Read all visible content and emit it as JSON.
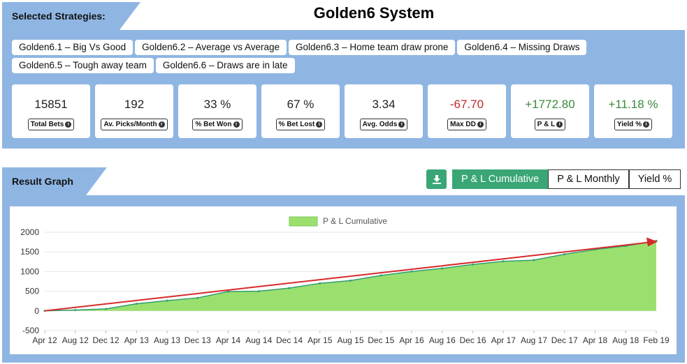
{
  "header": {
    "strategies_label": "Selected Strategies:",
    "title": "Golden6 System"
  },
  "strategies": [
    "Golden6.1 – Big Vs Good",
    "Golden6.2 – Average vs Average",
    "Golden6.3 – Home team draw prone",
    "Golden6.4 – Missing Draws",
    "Golden6.5 – Tough away team",
    "Golden6.6 – Draws are in late"
  ],
  "stats": [
    {
      "value": "15851",
      "label": "Total Bets",
      "tone": "neutral"
    },
    {
      "value": "192",
      "label": "Av. Picks/Month",
      "tone": "neutral"
    },
    {
      "value": "33 %",
      "label": "% Bet Won",
      "tone": "neutral"
    },
    {
      "value": "67 %",
      "label": "% Bet Lost",
      "tone": "neutral"
    },
    {
      "value": "3.34",
      "label": "Avg. Odds",
      "tone": "neutral"
    },
    {
      "value": "-67.70",
      "label": "Max DD",
      "tone": "neg"
    },
    {
      "value": "+1772.80",
      "label": "P & L",
      "tone": "pos"
    },
    {
      "value": "+11.18 %",
      "label": "Yield %",
      "tone": "pos"
    }
  ],
  "result": {
    "label": "Result Graph",
    "buttons": [
      "P & L Cumulative",
      "P & L Monthly",
      "Yield %"
    ],
    "active_button": 0
  },
  "colors": {
    "panel": "#8fb6e3",
    "accent_green": "#3aa676",
    "area_fill": "#9be06f",
    "area_line": "#2f9d6f",
    "trend_arrow": "#d62a2a"
  },
  "chart_data": {
    "type": "area",
    "legend": "P & L Cumulative",
    "legend_position": "top-center",
    "grid": true,
    "ylim": [
      -500,
      2000
    ],
    "yticks": [
      -500,
      0,
      500,
      1000,
      1500,
      2000
    ],
    "x_tick_labels": [
      "Apr 12",
      "Aug 12",
      "Dec 12",
      "Apr 13",
      "Aug 13",
      "Dec 13",
      "Apr 14",
      "Aug 14",
      "Dec 14",
      "Apr 15",
      "Aug 15",
      "Dec 15",
      "Apr 16",
      "Aug 16",
      "Dec 16",
      "Apr 17",
      "Aug 17",
      "Dec 17",
      "Apr 18",
      "Aug 18",
      "Feb 19"
    ],
    "x": [
      "Apr 12",
      "Aug 12",
      "Dec 12",
      "Apr 13",
      "Aug 13",
      "Dec 13",
      "Apr 14",
      "Aug 14",
      "Dec 14",
      "Apr 15",
      "Aug 15",
      "Dec 15",
      "Apr 16",
      "Aug 16",
      "Dec 16",
      "Apr 17",
      "Aug 17",
      "Dec 17",
      "Apr 18",
      "Aug 18",
      "Feb 19"
    ],
    "values": [
      0,
      20,
      50,
      180,
      260,
      330,
      490,
      500,
      580,
      700,
      770,
      900,
      1000,
      1080,
      1180,
      1260,
      1290,
      1440,
      1560,
      1650,
      1780
    ],
    "trendline": {
      "start": [
        "Apr 12",
        0
      ],
      "end": [
        "Feb 19",
        1760
      ]
    }
  }
}
